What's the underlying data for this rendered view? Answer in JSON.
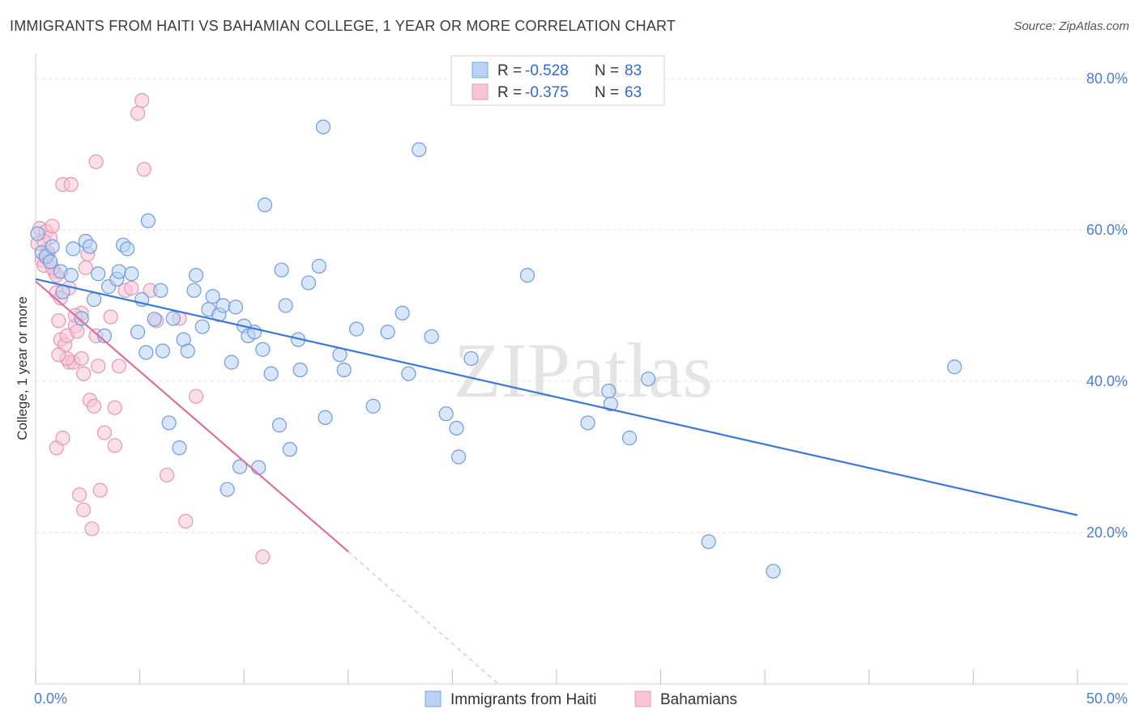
{
  "title": "IMMIGRANTS FROM HAITI VS BAHAMIAN COLLEGE, 1 YEAR OR MORE CORRELATION CHART",
  "source": "Source: ZipAtlas.com",
  "watermark": "ZIPatlas",
  "colors": {
    "blue": "#3a78d6",
    "blue_fill": "#b9d1f3",
    "pink": "#e0709a",
    "pink_fill": "#f6c4d5",
    "tick_text": "#4a7fd0",
    "grid": "#e2e2e2"
  },
  "legend": {
    "rows": [
      {
        "r_label": "R =",
        "r_value": "-0.528",
        "n_label": "N =",
        "n_value": "83",
        "color": "blue"
      },
      {
        "r_label": "R =",
        "r_value": "-0.375",
        "n_label": "N =",
        "n_value": "63",
        "color": "pink"
      }
    ],
    "bottom": [
      "Immigrants from Haiti",
      "Bahamians"
    ]
  },
  "chart_data": {
    "type": "scatter",
    "title": "IMMIGRANTS FROM HAITI VS BAHAMIAN COLLEGE, 1 YEAR OR MORE CORRELATION CHART",
    "xlabel": "",
    "ylabel": "College, 1 year or more",
    "xlim": [
      0,
      50
    ],
    "ylim": [
      0,
      80
    ],
    "x_tick_labels": [
      "0.0%",
      "50.0%"
    ],
    "y_tick_labels": [
      "20.0%",
      "40.0%",
      "60.0%",
      "80.0%"
    ],
    "y_ticks": [
      20,
      40,
      60,
      80
    ],
    "grid": true,
    "legend_position": "top-center",
    "series": [
      {
        "name": "Immigrants from Haiti",
        "color": "blue",
        "trend": {
          "x": [
            0,
            50
          ],
          "y": [
            53.5,
            22.3
          ]
        },
        "points": [
          [
            0.1,
            59.5
          ],
          [
            0.3,
            57
          ],
          [
            0.5,
            56.5
          ],
          [
            0.7,
            55.8
          ],
          [
            0.8,
            57.8
          ],
          [
            1.2,
            54.5
          ],
          [
            1.3,
            51.8
          ],
          [
            1.7,
            54
          ],
          [
            1.8,
            57.5
          ],
          [
            2.2,
            48.3
          ],
          [
            2.4,
            58.5
          ],
          [
            2.6,
            57.8
          ],
          [
            2.8,
            50.8
          ],
          [
            3,
            54.2
          ],
          [
            3.3,
            46
          ],
          [
            3.5,
            52.5
          ],
          [
            3.9,
            53.5
          ],
          [
            4,
            54.5
          ],
          [
            4.2,
            58
          ],
          [
            4.4,
            57.5
          ],
          [
            4.6,
            54.2
          ],
          [
            4.9,
            46.5
          ],
          [
            5.1,
            50.8
          ],
          [
            5.3,
            43.8
          ],
          [
            5.4,
            61.2
          ],
          [
            5.7,
            48.2
          ],
          [
            6,
            52
          ],
          [
            6.1,
            44
          ],
          [
            6.4,
            34.5
          ],
          [
            6.6,
            48.3
          ],
          [
            6.9,
            31.2
          ],
          [
            7.1,
            45.5
          ],
          [
            7.3,
            44
          ],
          [
            7.6,
            52
          ],
          [
            7.7,
            54
          ],
          [
            8,
            47.2
          ],
          [
            8.3,
            49.5
          ],
          [
            8.5,
            51.2
          ],
          [
            8.8,
            48.8
          ],
          [
            9,
            50
          ],
          [
            9.2,
            25.7
          ],
          [
            9.4,
            42.5
          ],
          [
            9.6,
            49.8
          ],
          [
            9.8,
            28.7
          ],
          [
            10,
            47.3
          ],
          [
            10.2,
            46
          ],
          [
            10.5,
            46.5
          ],
          [
            10.7,
            28.6
          ],
          [
            10.9,
            44.2
          ],
          [
            11,
            63.3
          ],
          [
            11.3,
            41
          ],
          [
            11.7,
            34.2
          ],
          [
            11.8,
            54.7
          ],
          [
            12,
            50
          ],
          [
            12.2,
            31
          ],
          [
            12.6,
            45.5
          ],
          [
            12.7,
            41.5
          ],
          [
            13.1,
            53
          ],
          [
            13.6,
            55.2
          ],
          [
            13.8,
            73.6
          ],
          [
            13.9,
            35.2
          ],
          [
            14.6,
            43.5
          ],
          [
            14.8,
            41.5
          ],
          [
            15.4,
            46.9
          ],
          [
            16.2,
            36.7
          ],
          [
            16.9,
            46.5
          ],
          [
            17.6,
            49
          ],
          [
            17.9,
            41
          ],
          [
            18.4,
            70.6
          ],
          [
            19,
            45.9
          ],
          [
            19.7,
            35.7
          ],
          [
            20.2,
            33.8
          ],
          [
            20.3,
            30
          ],
          [
            20.9,
            43
          ],
          [
            23.6,
            54
          ],
          [
            26.5,
            34.5
          ],
          [
            27.5,
            38.7
          ],
          [
            27.6,
            37
          ],
          [
            28.5,
            32.5
          ],
          [
            29.4,
            40.3
          ],
          [
            32.3,
            18.8
          ],
          [
            35.4,
            14.9
          ],
          [
            44.1,
            41.9
          ]
        ]
      },
      {
        "name": "Bahamians",
        "color": "pink",
        "trend": {
          "x": [
            0,
            15
          ],
          "y": [
            53.2,
            17.5
          ]
        },
        "trend_dashed": {
          "x": [
            15,
            22.2
          ],
          "y": [
            17.5,
            0
          ]
        },
        "points": [
          [
            0.1,
            58.2
          ],
          [
            0.2,
            60.2
          ],
          [
            0.3,
            56
          ],
          [
            0.4,
            55.3
          ],
          [
            0.5,
            59.8
          ],
          [
            0.6,
            56.7
          ],
          [
            0.7,
            59
          ],
          [
            0.8,
            60.5
          ],
          [
            0.9,
            54.5
          ],
          [
            1,
            51.7
          ],
          [
            1,
            54
          ],
          [
            1.1,
            48
          ],
          [
            1.2,
            45.5
          ],
          [
            1.3,
            66
          ],
          [
            1.4,
            44.8
          ],
          [
            1.5,
            46
          ],
          [
            1.6,
            42.5
          ],
          [
            1.7,
            66
          ],
          [
            1.8,
            42.5
          ],
          [
            1.9,
            47.3
          ],
          [
            2,
            46.6
          ],
          [
            2.1,
            25
          ],
          [
            2.2,
            49
          ],
          [
            2.3,
            41
          ],
          [
            2.4,
            55
          ],
          [
            2.5,
            56.8
          ],
          [
            2.6,
            37.5
          ],
          [
            2.8,
            36.7
          ],
          [
            2.9,
            69
          ],
          [
            3,
            42
          ],
          [
            3.1,
            25.6
          ],
          [
            3.3,
            33.2
          ],
          [
            3.6,
            48.5
          ],
          [
            3.8,
            31.5
          ],
          [
            4,
            42
          ],
          [
            4.3,
            52
          ],
          [
            4.6,
            52.3
          ],
          [
            4.9,
            75.4
          ],
          [
            5.1,
            77.1
          ],
          [
            5.2,
            68
          ],
          [
            5.5,
            52
          ],
          [
            5.8,
            48
          ],
          [
            6.3,
            27.6
          ],
          [
            6.9,
            48.3
          ],
          [
            7.2,
            21.5
          ],
          [
            7.7,
            38
          ],
          [
            1.2,
            51
          ],
          [
            0.8,
            55
          ],
          [
            1,
            31.2
          ],
          [
            1.3,
            32.5
          ],
          [
            2.3,
            23
          ],
          [
            2.7,
            20.5
          ],
          [
            3.8,
            36.5
          ],
          [
            1.5,
            43
          ],
          [
            1.1,
            43.5
          ],
          [
            2.9,
            46
          ],
          [
            0.5,
            56.4
          ],
          [
            0.4,
            58.5
          ],
          [
            0.6,
            57
          ],
          [
            10.9,
            16.8
          ],
          [
            1.6,
            52.3
          ],
          [
            2.2,
            43
          ],
          [
            1.9,
            48.7
          ]
        ]
      }
    ]
  }
}
